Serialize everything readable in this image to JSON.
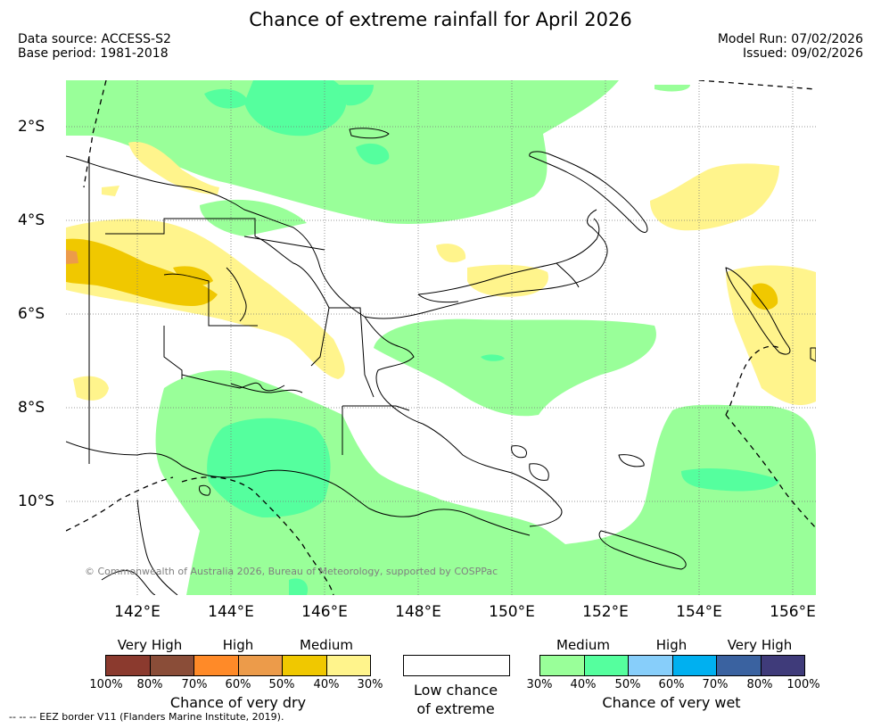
{
  "title": "Chance of extreme rainfall for April 2026",
  "data_source": "Data source: ACCESS-S2",
  "base_period": "Base period: 1981-2018",
  "model_run": "Model Run: 07/02/2026",
  "issued": "Issued: 09/02/2026",
  "map": {
    "lat_labels": [
      "2°S",
      "4°S",
      "6°S",
      "8°S",
      "10°S"
    ],
    "lon_labels": [
      "142°E",
      "144°E",
      "146°E",
      "148°E",
      "150°E",
      "152°E",
      "154°E",
      "156°E"
    ],
    "copyright": "© Commonwealth of Australia 2026, Bureau of Meteorology, supported by COSPPac",
    "colors": {
      "wet_30_40": "#99ff99",
      "wet_40_50": "#55ff9e",
      "dry_30_40": "#fff48c",
      "dry_40_50": "#f0c800",
      "dry_50_60": "#ec9b4a",
      "coast": "#000000"
    }
  },
  "legend": {
    "dry": {
      "categories": [
        "Very High",
        "High",
        "Medium"
      ],
      "colors": [
        "#8b3a2e",
        "#8a4d38",
        "#ff8a28",
        "#ec9b4a",
        "#f0c800",
        "#fff48c"
      ],
      "ticks": [
        "100%",
        "80%",
        "70%",
        "60%",
        "50%",
        "40%",
        "30%"
      ],
      "title": "Chance of very dry"
    },
    "low": {
      "line1": "Low chance",
      "line2": "of extreme",
      "color": "#ffffff"
    },
    "wet": {
      "categories": [
        "Medium",
        "High",
        "Very High"
      ],
      "colors": [
        "#99ff99",
        "#55ff9e",
        "#87cefa",
        "#00b0f0",
        "#3a62a0",
        "#3f3b7a"
      ],
      "ticks": [
        "30%",
        "40%",
        "50%",
        "60%",
        "70%",
        "80%",
        "100%"
      ],
      "title": "Chance of very wet"
    }
  },
  "eez_note": "--  --  -- EEZ border V11 (Flanders Marine Institute, 2019)."
}
